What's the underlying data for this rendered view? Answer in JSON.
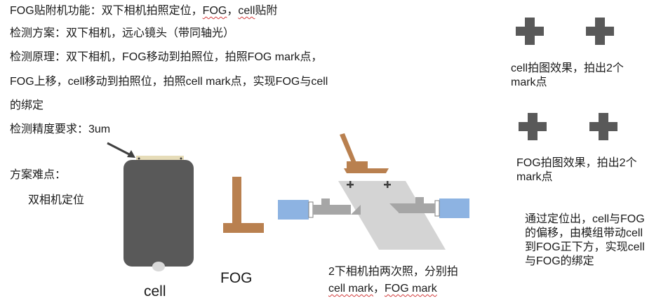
{
  "description_lines": [
    {
      "parts": [
        {
          "t": "FOG贴附机功能：双下相机拍照定位，"
        },
        {
          "t": "FOG",
          "u": true
        },
        {
          "t": "，"
        },
        {
          "t": "cell",
          "u": true
        },
        {
          "t": "贴附"
        }
      ]
    },
    {
      "parts": [
        {
          "t": "检测方案：双下相机，远心镜头（带同轴光）"
        }
      ]
    },
    {
      "parts": [
        {
          "t": "检测原理：双下相机，FOG移动到拍照位，拍照FOG mark点，"
        }
      ]
    },
    {
      "parts": [
        {
          "t": "FOG上移，cell移动到拍照位，拍照cell mark点，实现FOG与cell"
        }
      ]
    },
    {
      "parts": [
        {
          "t": "的绑定"
        }
      ]
    },
    {
      "parts": [
        {
          "t": "检测精度要求：3um"
        }
      ]
    }
  ],
  "difficulty": {
    "title": "方案难点：",
    "item": "双相机定位"
  },
  "labels": {
    "cell": "cell",
    "fog": "FOG",
    "cam_caption_line1": "2下相机拍两次照，分别拍",
    "cam_caption_line2_parts": [
      {
        "t": "cell mark",
        "u": true
      },
      {
        "t": "，"
      },
      {
        "t": "FOG mark",
        "u": true
      }
    ]
  },
  "right_panel": {
    "cell_caption": "cell拍图效果，拍出2个mark点",
    "fog_caption": "FOG拍图效果，拍出2个mark点",
    "summary": "通过定位出，cell与FOG的偏移，由模组带动cell到FOG正下方，实现cell与FOG的绑定"
  },
  "colors": {
    "text": "#1a1a1a",
    "cross_gray": "#595959",
    "cell_body": "#595959",
    "fog_brown": "#b9804f",
    "fog_strip": "#e6dcb8",
    "glass_gray": "#d4d4d4",
    "camera_blue": "#8db3e2",
    "lens_gray": "#a6a6a6"
  }
}
